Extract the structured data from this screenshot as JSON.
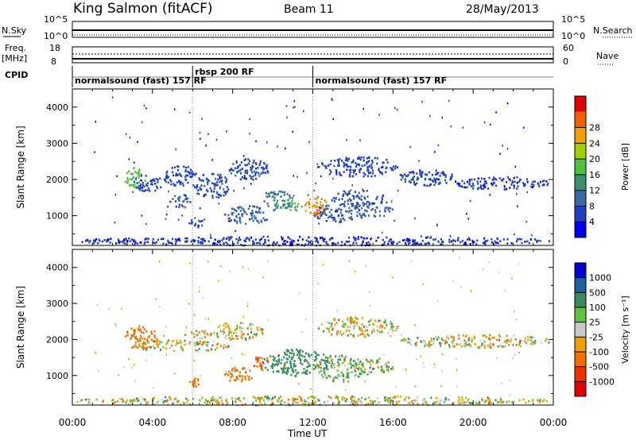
{
  "header": {
    "station": "King Salmon (fitACF)",
    "beam": "Beam 11",
    "date": "28/May/2013"
  },
  "strips": {
    "nsky_label": "N.Sky",
    "nsky_ticks": [
      "10^5",
      "10^0"
    ],
    "nsearch_label": "N.Search",
    "nsearch_ticks": [
      "10^5",
      "10^0"
    ],
    "freq_label_1": "Freq.",
    "freq_label_2": "[MHz]",
    "freq_ticks": [
      "18",
      "8"
    ],
    "nave_label": "Nave",
    "nave_ticks": [
      "60",
      "0"
    ],
    "cpid_label": "CPID"
  },
  "cpid_segments": [
    {
      "label": "normalsound (fast) 157 RF",
      "start_h": 0.0,
      "end_h": 6.0
    },
    {
      "label": "rbsp 200 RF",
      "start_h": 6.0,
      "end_h": 12.0
    },
    {
      "label": "normalsound (fast) 157 RF",
      "start_h": 12.0,
      "end_h": 24.0
    }
  ],
  "chart_data": [
    {
      "type": "heatmap",
      "name": "power-panel",
      "ylabel": "Slant Range [km]",
      "yticks": [
        "1000",
        "2000",
        "3000",
        "4000"
      ],
      "ylim": [
        180,
        4500
      ],
      "xlim": [
        0,
        24
      ],
      "colorbar": {
        "label": "Power [dB]",
        "ticks": [
          "4",
          "8",
          "12",
          "16",
          "20",
          "24",
          "28"
        ],
        "levels": [
          0,
          4,
          8,
          12,
          16,
          20,
          24,
          28,
          32
        ],
        "colors": [
          "#0000f0",
          "#2040c0",
          "#3a6aa0",
          "#3c9070",
          "#50c040",
          "#a0d000",
          "#f0a000",
          "#f06000",
          "#e00000"
        ]
      },
      "blobs": [
        {
          "x0": 2.6,
          "x1": 3.6,
          "y0": 1750,
          "y1": 2350,
          "v": 18
        },
        {
          "x0": 3.0,
          "x1": 4.5,
          "y0": 1700,
          "y1": 2150,
          "v": 6
        },
        {
          "x0": 4.5,
          "x1": 6.2,
          "y0": 1850,
          "y1": 2400,
          "v": 6
        },
        {
          "x0": 6.0,
          "x1": 7.8,
          "y0": 1500,
          "y1": 2200,
          "v": 7
        },
        {
          "x0": 7.8,
          "x1": 9.8,
          "y0": 2000,
          "y1": 2600,
          "v": 7
        },
        {
          "x0": 4.8,
          "x1": 6.0,
          "y0": 1250,
          "y1": 1600,
          "v": 8
        },
        {
          "x0": 5.8,
          "x1": 6.5,
          "y0": 700,
          "y1": 950,
          "v": 7
        },
        {
          "x0": 7.5,
          "x1": 9.8,
          "y0": 800,
          "y1": 1300,
          "v": 9
        },
        {
          "x0": 9.5,
          "x1": 11.0,
          "y0": 1150,
          "y1": 1700,
          "v": 11
        },
        {
          "x0": 10.0,
          "x1": 11.5,
          "y0": 1150,
          "y1": 1450,
          "v": 16
        },
        {
          "x0": 11.5,
          "x1": 12.8,
          "y0": 1050,
          "y1": 1550,
          "v": 28
        },
        {
          "x0": 12.0,
          "x1": 14.5,
          "y0": 850,
          "y1": 1350,
          "v": 8
        },
        {
          "x0": 12.8,
          "x1": 15.5,
          "y0": 1250,
          "y1": 1750,
          "v": 7
        },
        {
          "x0": 12.2,
          "x1": 16.2,
          "y0": 2100,
          "y1": 2650,
          "v": 6
        },
        {
          "x0": 14.0,
          "x1": 16.0,
          "y0": 1000,
          "y1": 1300,
          "v": 10
        },
        {
          "x0": 16.2,
          "x1": 19.0,
          "y0": 1850,
          "y1": 2300,
          "v": 6
        },
        {
          "x0": 19.0,
          "x1": 23.8,
          "y0": 1750,
          "y1": 2100,
          "v": 5
        },
        {
          "x0": 0.2,
          "x1": 23.8,
          "y0": 200,
          "y1": 450,
          "v": 5
        }
      ]
    },
    {
      "type": "heatmap",
      "name": "velocity-panel",
      "ylabel": "Slant Range [km]",
      "yticks": [
        "1000",
        "2000",
        "3000",
        "4000"
      ],
      "ylim": [
        180,
        4500
      ],
      "xlim": [
        0,
        24
      ],
      "colorbar": {
        "label": "Velocity [m s⁻¹]",
        "ticks": [
          "1000",
          "500",
          "100",
          "25",
          "-25",
          "-100",
          "-500",
          "-1000"
        ],
        "levels": [
          1200,
          1000,
          500,
          100,
          25,
          -25,
          -100,
          -500,
          -1000,
          -1200
        ],
        "colors": [
          "#0000d0",
          "#2060a0",
          "#3a8a60",
          "#60c040",
          "#c8c8c8",
          "#f0a000",
          "#f07000",
          "#f03000",
          "#e00000"
        ]
      },
      "blobs": [
        {
          "x0": 2.6,
          "x1": 4.2,
          "y0": 1750,
          "y1": 2400,
          "v": -300
        },
        {
          "x0": 3.0,
          "x1": 7.8,
          "y0": 1700,
          "y1": 2000,
          "v": 0
        },
        {
          "x0": 5.5,
          "x1": 7.0,
          "y0": 2050,
          "y1": 2300,
          "v": -60
        },
        {
          "x0": 7.0,
          "x1": 9.5,
          "y0": 2000,
          "y1": 2500,
          "v": 0
        },
        {
          "x0": 5.8,
          "x1": 6.5,
          "y0": 700,
          "y1": 950,
          "v": -300
        },
        {
          "x0": 7.5,
          "x1": 9.0,
          "y0": 850,
          "y1": 1250,
          "v": -300
        },
        {
          "x0": 9.0,
          "x1": 9.8,
          "y0": 1150,
          "y1": 1600,
          "v": -400
        },
        {
          "x0": 9.5,
          "x1": 12.8,
          "y0": 1000,
          "y1": 1750,
          "v": 300
        },
        {
          "x0": 12.2,
          "x1": 14.5,
          "y0": 850,
          "y1": 1600,
          "v": 60
        },
        {
          "x0": 14.0,
          "x1": 16.0,
          "y0": 1000,
          "y1": 1500,
          "v": 60
        },
        {
          "x0": 12.2,
          "x1": 16.2,
          "y0": 2100,
          "y1": 2650,
          "v": 0
        },
        {
          "x0": 16.2,
          "x1": 23.8,
          "y0": 1800,
          "y1": 2150,
          "v": 0
        },
        {
          "x0": 0.2,
          "x1": 23.8,
          "y0": 200,
          "y1": 450,
          "v": 0
        }
      ]
    }
  ],
  "xaxis": {
    "ticks": [
      "00:00",
      "04:00",
      "08:00",
      "12:00",
      "16:00",
      "20:00",
      "00:00"
    ],
    "label": "Time UT"
  }
}
